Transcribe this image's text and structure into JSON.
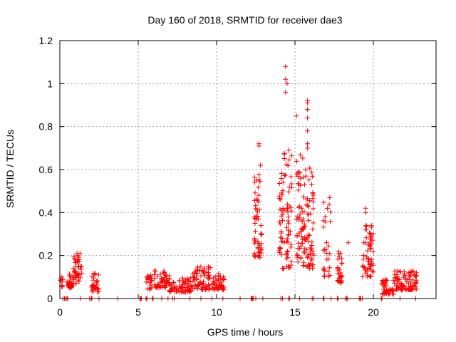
{
  "chart_data": {
    "type": "scatter",
    "title": "Day 160 of 2018, SRMTID for receiver dae3",
    "xlabel": "GPS time / hours",
    "ylabel": "SRMTID / TECUs",
    "xlim": [
      0,
      24
    ],
    "ylim": [
      0,
      1.2
    ],
    "xticks": [
      0,
      5,
      10,
      15,
      20
    ],
    "xtick_labels": [
      "0",
      "5",
      "10",
      "15",
      "20"
    ],
    "yticks": [
      0,
      0.2,
      0.4,
      0.6,
      0.8,
      1.0,
      1.2
    ],
    "ytick_labels": [
      "0",
      "0.2",
      "0.4",
      "0.6",
      "0.8",
      "1",
      "1.2"
    ],
    "grid": true,
    "marker": "+",
    "color": "#ff0000",
    "clusters": [
      {
        "x_start": 0.0,
        "x_end": 0.2,
        "y_min": 0.05,
        "y_max": 0.1,
        "count": 10
      },
      {
        "x_start": 0.45,
        "x_end": 0.85,
        "y_min": 0.05,
        "y_max": 0.12,
        "count": 30
      },
      {
        "x_start": 0.85,
        "x_end": 1.4,
        "y_min": 0.07,
        "y_max": 0.21,
        "count": 40
      },
      {
        "x_start": 2.0,
        "x_end": 2.5,
        "y_min": 0.03,
        "y_max": 0.12,
        "count": 30
      },
      {
        "x_start": 5.5,
        "x_end": 5.9,
        "y_min": 0.04,
        "y_max": 0.11,
        "count": 20
      },
      {
        "x_start": 6.0,
        "x_end": 7.0,
        "y_min": 0.05,
        "y_max": 0.13,
        "count": 50
      },
      {
        "x_start": 7.0,
        "x_end": 7.5,
        "y_min": 0.03,
        "y_max": 0.08,
        "count": 20
      },
      {
        "x_start": 7.5,
        "x_end": 8.4,
        "y_min": 0.03,
        "y_max": 0.1,
        "count": 50
      },
      {
        "x_start": 8.4,
        "x_end": 9.6,
        "y_min": 0.04,
        "y_max": 0.15,
        "count": 70
      },
      {
        "x_start": 9.7,
        "x_end": 10.5,
        "y_min": 0.04,
        "y_max": 0.12,
        "count": 45
      },
      {
        "x_start": 12.4,
        "x_end": 12.9,
        "y_min": 0.19,
        "y_max": 0.62,
        "count": 55
      },
      {
        "x_start": 14.0,
        "x_end": 14.2,
        "y_min": 0.2,
        "y_max": 0.61,
        "count": 25
      },
      {
        "x_start": 14.2,
        "x_end": 14.8,
        "y_min": 0.13,
        "y_max": 0.7,
        "count": 55
      },
      {
        "x_start": 15.1,
        "x_end": 15.5,
        "y_min": 0.17,
        "y_max": 0.7,
        "count": 45
      },
      {
        "x_start": 15.5,
        "x_end": 16.2,
        "y_min": 0.14,
        "y_max": 0.63,
        "count": 75
      },
      {
        "x_start": 16.8,
        "x_end": 17.3,
        "y_min": 0.1,
        "y_max": 0.48,
        "count": 30
      },
      {
        "x_start": 17.7,
        "x_end": 18.0,
        "y_min": 0.07,
        "y_max": 0.22,
        "count": 30
      },
      {
        "x_start": 19.3,
        "x_end": 20.0,
        "y_min": 0.1,
        "y_max": 0.38,
        "count": 60
      },
      {
        "x_start": 20.5,
        "x_end": 21.3,
        "y_min": 0.02,
        "y_max": 0.1,
        "count": 45
      },
      {
        "x_start": 21.3,
        "x_end": 22.8,
        "y_min": 0.04,
        "y_max": 0.13,
        "count": 90
      }
    ],
    "extra_points": [
      {
        "x": 14.4,
        "y": 1.08
      },
      {
        "x": 14.4,
        "y": 1.02
      },
      {
        "x": 14.5,
        "y": 1.0
      },
      {
        "x": 14.4,
        "y": 0.96
      },
      {
        "x": 15.1,
        "y": 0.85
      },
      {
        "x": 15.8,
        "y": 0.92
      },
      {
        "x": 15.8,
        "y": 0.91
      },
      {
        "x": 15.8,
        "y": 0.88
      },
      {
        "x": 15.8,
        "y": 0.84
      },
      {
        "x": 15.8,
        "y": 0.78
      },
      {
        "x": 15.8,
        "y": 0.72
      },
      {
        "x": 15.8,
        "y": 0.7
      },
      {
        "x": 12.7,
        "y": 0.72
      },
      {
        "x": 12.7,
        "y": 0.71
      },
      {
        "x": 14.6,
        "y": 0.69
      },
      {
        "x": 12.8,
        "y": 0.62
      },
      {
        "x": 19.5,
        "y": 0.42
      },
      {
        "x": 19.5,
        "y": 0.4
      },
      {
        "x": 18.4,
        "y": 0.26
      },
      {
        "x": 1.1,
        "y": 0.21
      },
      {
        "x": 14.3,
        "y": 0.14
      }
    ],
    "baseline_points_x": [
      0.2,
      0.3,
      0.35,
      0.45,
      0.5,
      1.3,
      1.9,
      2.0,
      2.05,
      2.5,
      3.7,
      5.1,
      5.15,
      5.2,
      5.5,
      5.55,
      5.9,
      5.95,
      6.5,
      6.9,
      7.2,
      7.3,
      8.3,
      9.0,
      9.7,
      10.4,
      11.5,
      12.2,
      12.25,
      12.3,
      12.35,
      12.5,
      12.95,
      14.1,
      14.2,
      14.6,
      14.65,
      15.3,
      16.1,
      16.2,
      16.8,
      16.85,
      17.3,
      17.7,
      17.75,
      18.2,
      18.3,
      18.35,
      19.1,
      19.15,
      19.2,
      19.3,
      20.5,
      20.55,
      21.7,
      22.7
    ]
  }
}
